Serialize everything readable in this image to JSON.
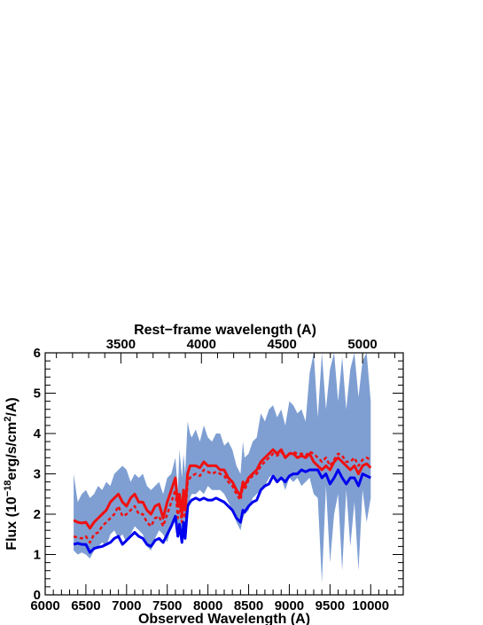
{
  "chart_data": {
    "type": "line",
    "title": "",
    "xlabel": "Observed Wavelength (A)",
    "top_xlabel": "Rest−frame wavelength (A)",
    "ylabel_parts": {
      "pre": "Flux (10",
      "exp1": "−18",
      "mid": "erg/s/cm",
      "exp2": "2",
      "post": "/A)"
    },
    "xlim": [
      6000,
      10400
    ],
    "ylim": [
      0,
      6
    ],
    "xticks": [
      6000,
      6500,
      7000,
      7500,
      8000,
      8500,
      9000,
      9500,
      10000
    ],
    "yticks": [
      0,
      1,
      2,
      3,
      4,
      5,
      6
    ],
    "top_ticks": [
      3500,
      4000,
      4500,
      5000
    ],
    "redshift": 0.98,
    "grid": false,
    "colors": {
      "band": "#7f9fd3",
      "red": "#ee1111",
      "blue": "#0000ee"
    },
    "x": [
      6350,
      6400,
      6450,
      6500,
      6550,
      6600,
      6650,
      6700,
      6750,
      6800,
      6850,
      6900,
      6950,
      7000,
      7050,
      7100,
      7150,
      7200,
      7250,
      7300,
      7350,
      7400,
      7450,
      7500,
      7550,
      7600,
      7630,
      7650,
      7680,
      7700,
      7720,
      7750,
      7780,
      7800,
      7850,
      7900,
      7950,
      8000,
      8050,
      8100,
      8150,
      8200,
      8250,
      8300,
      8350,
      8400,
      8430,
      8450,
      8500,
      8550,
      8600,
      8650,
      8700,
      8750,
      8800,
      8850,
      8900,
      8950,
      9000,
      9050,
      9100,
      9150,
      9200,
      9250,
      9300,
      9350,
      9400,
      9450,
      9500,
      9550,
      9600,
      9650,
      9700,
      9750,
      9800,
      9850,
      9900,
      9950,
      10000
    ],
    "series": [
      {
        "style": "band-lower",
        "values": [
          1.1,
          1.0,
          1.05,
          1.0,
          0.9,
          1.1,
          1.2,
          1.3,
          1.2,
          1.5,
          1.6,
          1.4,
          1.5,
          1.3,
          1.5,
          1.7,
          1.6,
          1.5,
          1.2,
          1.1,
          1.4,
          1.6,
          1.5,
          1.3,
          1.7,
          2.0,
          1.5,
          1.8,
          1.4,
          1.9,
          1.3,
          1.8,
          2.4,
          2.5,
          2.5,
          2.6,
          2.5,
          2.7,
          2.6,
          2.6,
          2.6,
          2.5,
          2.3,
          2.1,
          1.8,
          1.6,
          1.9,
          2.0,
          2.1,
          2.4,
          2.5,
          2.6,
          2.7,
          2.9,
          3.0,
          2.8,
          2.9,
          2.6,
          2.9,
          2.8,
          2.9,
          2.7,
          2.8,
          2.9,
          2.5,
          2.4,
          0.3,
          2.7,
          0.8,
          2.0,
          2.5,
          0.6,
          2.6,
          1.2,
          2.3,
          0.6,
          2.6,
          1.8,
          2.4
        ]
      },
      {
        "style": "band-upper",
        "values": [
          3.0,
          2.3,
          2.5,
          2.6,
          2.4,
          2.5,
          2.7,
          2.6,
          2.8,
          2.7,
          3.0,
          3.1,
          3.2,
          3.1,
          2.8,
          3.0,
          2.9,
          3.0,
          2.7,
          2.6,
          2.7,
          2.8,
          2.5,
          2.9,
          3.0,
          3.4,
          2.6,
          3.6,
          2.9,
          3.5,
          3.0,
          4.3,
          4.0,
          3.9,
          4.1,
          3.8,
          4.2,
          3.9,
          3.8,
          4.0,
          4.0,
          3.7,
          3.8,
          3.6,
          3.2,
          3.0,
          3.8,
          3.4,
          3.5,
          3.8,
          3.9,
          4.5,
          4.3,
          4.6,
          4.7,
          4.4,
          4.6,
          4.2,
          4.8,
          4.7,
          4.5,
          4.6,
          4.3,
          5.5,
          6.0,
          4.4,
          6.0,
          4.6,
          5.6,
          6.0,
          4.8,
          5.9,
          4.6,
          5.6,
          6.0,
          4.9,
          5.8,
          6.0,
          4.8
        ]
      },
      {
        "style": "red-solid",
        "values": [
          1.85,
          1.8,
          1.78,
          1.8,
          1.65,
          1.8,
          1.9,
          2.0,
          2.1,
          2.3,
          2.4,
          2.5,
          2.3,
          2.2,
          2.4,
          2.5,
          2.3,
          2.3,
          2.1,
          2.0,
          2.2,
          2.25,
          1.9,
          2.3,
          2.6,
          2.9,
          2.2,
          2.5,
          2.0,
          2.6,
          2.1,
          3.0,
          3.2,
          3.2,
          3.2,
          3.15,
          3.3,
          3.2,
          3.2,
          3.2,
          3.1,
          3.1,
          2.9,
          2.8,
          2.6,
          2.45,
          2.8,
          2.7,
          2.9,
          3.0,
          3.1,
          3.3,
          3.4,
          3.5,
          3.6,
          3.5,
          3.6,
          3.4,
          3.5,
          3.5,
          3.4,
          3.45,
          3.4,
          3.5,
          3.3,
          3.2,
          3.1,
          3.2,
          3.1,
          3.3,
          3.4,
          3.3,
          3.2,
          3.1,
          3.2,
          3.0,
          3.2,
          3.25,
          3.15
        ]
      },
      {
        "style": "red-dotted",
        "values": [
          1.45,
          1.42,
          1.4,
          1.45,
          1.3,
          1.5,
          1.55,
          1.7,
          1.8,
          1.9,
          2.0,
          2.2,
          1.95,
          2.0,
          2.1,
          2.2,
          2.0,
          2.0,
          1.8,
          1.7,
          1.9,
          1.95,
          1.7,
          2.0,
          2.3,
          2.6,
          1.9,
          2.3,
          1.8,
          2.35,
          1.9,
          2.8,
          2.9,
          2.95,
          3.0,
          2.95,
          3.1,
          3.05,
          3.0,
          3.05,
          3.0,
          2.95,
          2.8,
          2.7,
          2.5,
          2.35,
          2.7,
          2.6,
          2.85,
          2.95,
          3.0,
          3.2,
          3.3,
          3.4,
          3.5,
          3.45,
          3.55,
          3.4,
          3.5,
          3.55,
          3.5,
          3.5,
          3.45,
          3.55,
          3.5,
          3.4,
          3.3,
          3.4,
          3.2,
          3.35,
          3.5,
          3.45,
          3.3,
          3.3,
          3.4,
          3.2,
          3.35,
          3.4,
          3.35
        ]
      },
      {
        "style": "blue-solid",
        "values": [
          1.25,
          1.28,
          1.25,
          1.25,
          1.05,
          1.15,
          1.18,
          1.2,
          1.25,
          1.3,
          1.4,
          1.45,
          1.25,
          1.35,
          1.45,
          1.55,
          1.45,
          1.4,
          1.25,
          1.2,
          1.35,
          1.4,
          1.3,
          1.5,
          1.7,
          1.95,
          1.45,
          1.75,
          1.3,
          1.8,
          1.4,
          2.2,
          2.3,
          2.35,
          2.4,
          2.35,
          2.4,
          2.35,
          2.35,
          2.4,
          2.35,
          2.3,
          2.2,
          2.1,
          1.9,
          1.8,
          2.1,
          2.05,
          2.2,
          2.3,
          2.35,
          2.6,
          2.7,
          2.75,
          2.95,
          2.8,
          2.9,
          2.8,
          2.95,
          3.0,
          3.0,
          3.1,
          3.05,
          3.1,
          3.1,
          3.1,
          2.9,
          3.0,
          2.75,
          2.9,
          3.1,
          2.9,
          2.75,
          2.9,
          2.9,
          2.7,
          3.0,
          2.95,
          2.9
        ]
      }
    ]
  }
}
